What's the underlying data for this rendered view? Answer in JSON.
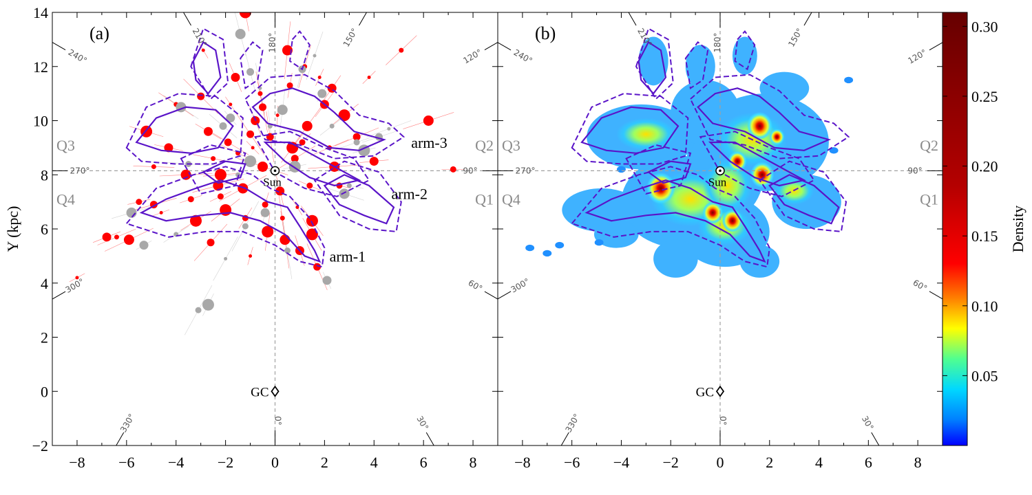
{
  "chart_data": {
    "type": "scatter",
    "panels": [
      {
        "label": "(a)",
        "kind": "scatter with contours",
        "series": [
          {
            "name": "",
            "color": "#ff0000",
            "points": [
              [
                -8.0,
                4.2
              ],
              [
                -6.8,
                5.7
              ],
              [
                -6.4,
                5.7
              ],
              [
                -5.9,
                5.6
              ],
              [
                -5.5,
                7.0
              ],
              [
                -5.2,
                9.6
              ],
              [
                -4.9,
                6.9
              ],
              [
                -4.6,
                6.6
              ],
              [
                -4.3,
                9.0
              ],
              [
                -4.0,
                10.6
              ],
              [
                -3.6,
                8.0
              ],
              [
                -3.4,
                7.1
              ],
              [
                -3.2,
                6.3
              ],
              [
                -3.0,
                10.9
              ],
              [
                -2.9,
                12.6
              ],
              [
                -2.7,
                9.6
              ],
              [
                -2.5,
                8.6
              ],
              [
                -2.3,
                7.6
              ],
              [
                -2.2,
                7.2
              ],
              [
                -2.0,
                6.7
              ],
              [
                -1.9,
                9.2
              ],
              [
                -1.8,
                10.6
              ],
              [
                -1.6,
                11.6
              ],
              [
                -1.5,
                8.8
              ],
              [
                -1.3,
                7.5
              ],
              [
                -1.2,
                6.4
              ],
              [
                -1.2,
                14.0
              ],
              [
                -1.0,
                9.5
              ],
              [
                -0.9,
                9.0
              ],
              [
                -0.8,
                10.0
              ],
              [
                -0.6,
                11.0
              ],
              [
                -0.5,
                8.3
              ],
              [
                -0.4,
                6.9
              ],
              [
                -0.3,
                5.9
              ],
              [
                -0.2,
                9.4
              ],
              [
                0.1,
                10.2
              ],
              [
                0.2,
                7.4
              ],
              [
                0.3,
                6.4
              ],
              [
                0.4,
                5.6
              ],
              [
                0.6,
                11.3
              ],
              [
                0.7,
                9.0
              ],
              [
                0.8,
                8.6
              ],
              [
                0.9,
                6.8
              ],
              [
                1.0,
                5.2
              ],
              [
                1.2,
                12.0
              ],
              [
                1.3,
                9.8
              ],
              [
                1.4,
                7.6
              ],
              [
                1.5,
                6.3
              ],
              [
                1.7,
                4.6
              ],
              [
                1.8,
                11.6
              ],
              [
                2.0,
                10.6
              ],
              [
                2.2,
                9.0
              ],
              [
                2.4,
                8.3
              ],
              [
                2.6,
                7.6
              ],
              [
                2.8,
                10.2
              ],
              [
                3.3,
                9.4
              ],
              [
                3.8,
                11.6
              ],
              [
                4.0,
                8.5
              ],
              [
                5.1,
                12.6
              ],
              [
                6.2,
                10.0
              ],
              [
                7.2,
                8.2
              ],
              [
                1.5,
                5.8
              ],
              [
                -2.6,
                5.5
              ],
              [
                -1.0,
                5.0
              ],
              [
                2.3,
                11.2
              ],
              [
                -4.9,
                8.3
              ],
              [
                0.5,
                12.6
              ],
              [
                1.1,
                9.2
              ],
              [
                -2.2,
                8.0
              ],
              [
                -0.5,
                10.5
              ]
            ]
          },
          {
            "name": "",
            "color": "#a8a8a8",
            "points": [
              [
                -5.3,
                5.4
              ],
              [
                -4.0,
                5.8
              ],
              [
                -3.8,
                10.5
              ],
              [
                -3.5,
                8.4
              ],
              [
                -2.7,
                3.2
              ],
              [
                -2.1,
                9.8
              ],
              [
                -2.0,
                4.9
              ],
              [
                -1.8,
                10.1
              ],
              [
                -1.5,
                8.0
              ],
              [
                -1.4,
                13.2
              ],
              [
                -1.2,
                6.1
              ],
              [
                -1.0,
                8.5
              ],
              [
                -1.0,
                11.8
              ],
              [
                -0.6,
                11.2
              ],
              [
                -0.4,
                6.6
              ],
              [
                -0.2,
                9.8
              ],
              [
                0.3,
                10.4
              ],
              [
                0.5,
                5.2
              ],
              [
                0.8,
                8.3
              ],
              [
                1.1,
                11.9
              ],
              [
                1.6,
                12.4
              ],
              [
                1.9,
                11.0
              ],
              [
                2.3,
                9.8
              ],
              [
                2.8,
                7.3
              ],
              [
                3.3,
                9.2
              ],
              [
                3.6,
                8.9
              ],
              [
                4.2,
                9.4
              ],
              [
                4.6,
                9.7
              ],
              [
                2.1,
                4.1
              ],
              [
                3.0,
                7.6
              ],
              [
                -5.8,
                6.6
              ],
              [
                -3.1,
                3.0
              ]
            ]
          }
        ]
      },
      {
        "label": "(b)",
        "kind": "density map with contours",
        "density_peaks": [
          {
            "x": -2.4,
            "y": 7.5,
            "density": 0.3
          },
          {
            "x": 1.6,
            "y": 9.8,
            "density": 0.25
          },
          {
            "x": 1.7,
            "y": 8.0,
            "density": 0.22
          },
          {
            "x": 0.5,
            "y": 6.3,
            "density": 0.18
          },
          {
            "x": -0.3,
            "y": 6.6,
            "density": 0.17
          },
          {
            "x": 0.7,
            "y": 8.5,
            "density": 0.14
          },
          {
            "x": 2.3,
            "y": 9.4,
            "density": 0.08
          }
        ]
      }
    ],
    "xlim": [
      -9,
      9
    ],
    "ylim": [
      -2,
      14
    ],
    "x_ticks": [
      -8,
      -6,
      -4,
      -2,
      0,
      2,
      4,
      6,
      8
    ],
    "x_tick_labels": [
      "−8",
      "−6",
      "−4",
      "−2",
      "0",
      "2",
      "4",
      "6",
      "8"
    ],
    "y_ticks": [
      -2,
      0,
      2,
      4,
      6,
      8,
      10,
      12,
      14
    ],
    "y_tick_labels": [
      "−2",
      "0",
      "2",
      "4",
      "6",
      "8",
      "10",
      "12",
      "14"
    ],
    "ylabel": "Y (kpc)",
    "sun": {
      "x": 0,
      "y": 8.15,
      "label": "Sun"
    },
    "gc": {
      "x": 0,
      "y": 0,
      "label": "GC"
    },
    "quadrant_labels": [
      "Q1",
      "Q2",
      "Q3",
      "Q4"
    ],
    "longitude_labels": [
      "0°",
      "30°",
      "60°",
      "90°",
      "120°",
      "150°",
      "180°",
      "210°",
      "240°",
      "270°",
      "300°",
      "330°"
    ],
    "arm_labels": [
      "arm-1",
      "arm-2",
      "arm-3"
    ],
    "colorbar": {
      "label": "Density",
      "range": [
        0,
        0.31
      ],
      "ticks": [
        0.05,
        0.1,
        0.15,
        0.2,
        0.25,
        0.3
      ],
      "tick_labels": [
        "0.05",
        "0.10",
        "0.15",
        "0.20",
        "0.25",
        "0.30"
      ],
      "colormap": "jet"
    },
    "contour_color": "#5a14c8",
    "grid": false
  }
}
